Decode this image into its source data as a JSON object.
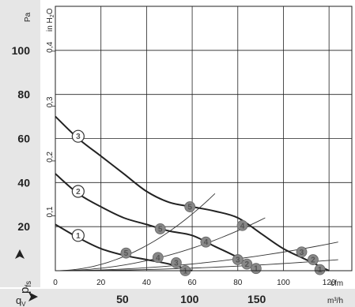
{
  "chart_data": {
    "type": "line",
    "y_axis_pa": {
      "unit": "Pa",
      "ticks": [
        20,
        40,
        60,
        80,
        100
      ],
      "range": [
        0,
        120
      ]
    },
    "y_axis_inh2o": {
      "unit": "in H2O",
      "ticks": [
        "0,1",
        "0,2",
        "0,3",
        "0,4"
      ]
    },
    "x_axis_cfm": {
      "unit": "cfm",
      "ticks": [
        0,
        20,
        40,
        60,
        80,
        100,
        120
      ],
      "range": [
        0,
        130
      ]
    },
    "x_axis_m3h": {
      "unit": "m³/h",
      "ticks": [
        50,
        100,
        150
      ]
    },
    "y_label": "p",
    "y_label_sub": "fs",
    "x_label": "q",
    "x_label_sub": "V",
    "series": [
      {
        "name": "1",
        "x": [
          0,
          10,
          20,
          30,
          40,
          50,
          60
        ],
        "y": [
          21,
          15,
          10,
          7,
          5,
          3,
          0
        ],
        "curve_marker": {
          "x": 10,
          "y": 16
        },
        "operating_markers": [
          {
            "label": "5",
            "x": 31,
            "y": 8
          },
          {
            "label": "4",
            "x": 45,
            "y": 6
          },
          {
            "label": "3",
            "x": 53,
            "y": 3.6
          },
          {
            "label": "1",
            "x": 57,
            "y": 0
          }
        ]
      },
      {
        "name": "2",
        "x": [
          0,
          10,
          20,
          30,
          40,
          50,
          60,
          70,
          80,
          90
        ],
        "y": [
          44,
          35,
          29,
          24,
          21,
          18,
          16,
          11,
          6,
          0
        ],
        "curve_marker": {
          "x": 10,
          "y": 36
        },
        "operating_markers": [
          {
            "label": "5",
            "x": 46,
            "y": 19
          },
          {
            "label": "4",
            "x": 66,
            "y": 13
          },
          {
            "label": "3",
            "x": 80,
            "y": 5
          },
          {
            "label": "2",
            "x": 84,
            "y": 3
          },
          {
            "label": "1",
            "x": 88,
            "y": 1
          }
        ]
      },
      {
        "name": "3",
        "x": [
          0,
          10,
          20,
          30,
          40,
          50,
          60,
          70,
          80,
          90,
          100,
          110,
          120
        ],
        "y": [
          70,
          60,
          52,
          44,
          36,
          31,
          29,
          27,
          24,
          17,
          10,
          5,
          0
        ],
        "curve_marker": {
          "x": 10,
          "y": 61
        },
        "operating_markers": [
          {
            "label": "5",
            "x": 59,
            "y": 29
          },
          {
            "label": "4",
            "x": 82,
            "y": 20.5
          },
          {
            "label": "3",
            "x": 108,
            "y": 8.5
          },
          {
            "label": "2",
            "x": 113,
            "y": 5
          },
          {
            "label": "1",
            "x": 116,
            "y": 0.5
          }
        ]
      }
    ],
    "system_lines": [
      {
        "x": [
          0,
          70
        ],
        "y": [
          0,
          35
        ]
      },
      {
        "x": [
          0,
          92
        ],
        "y": [
          0,
          24
        ]
      },
      {
        "x": [
          0,
          124
        ],
        "y": [
          0,
          13
        ]
      },
      {
        "x": [
          0,
          124
        ],
        "y": [
          0,
          5
        ]
      }
    ],
    "grid": true
  }
}
